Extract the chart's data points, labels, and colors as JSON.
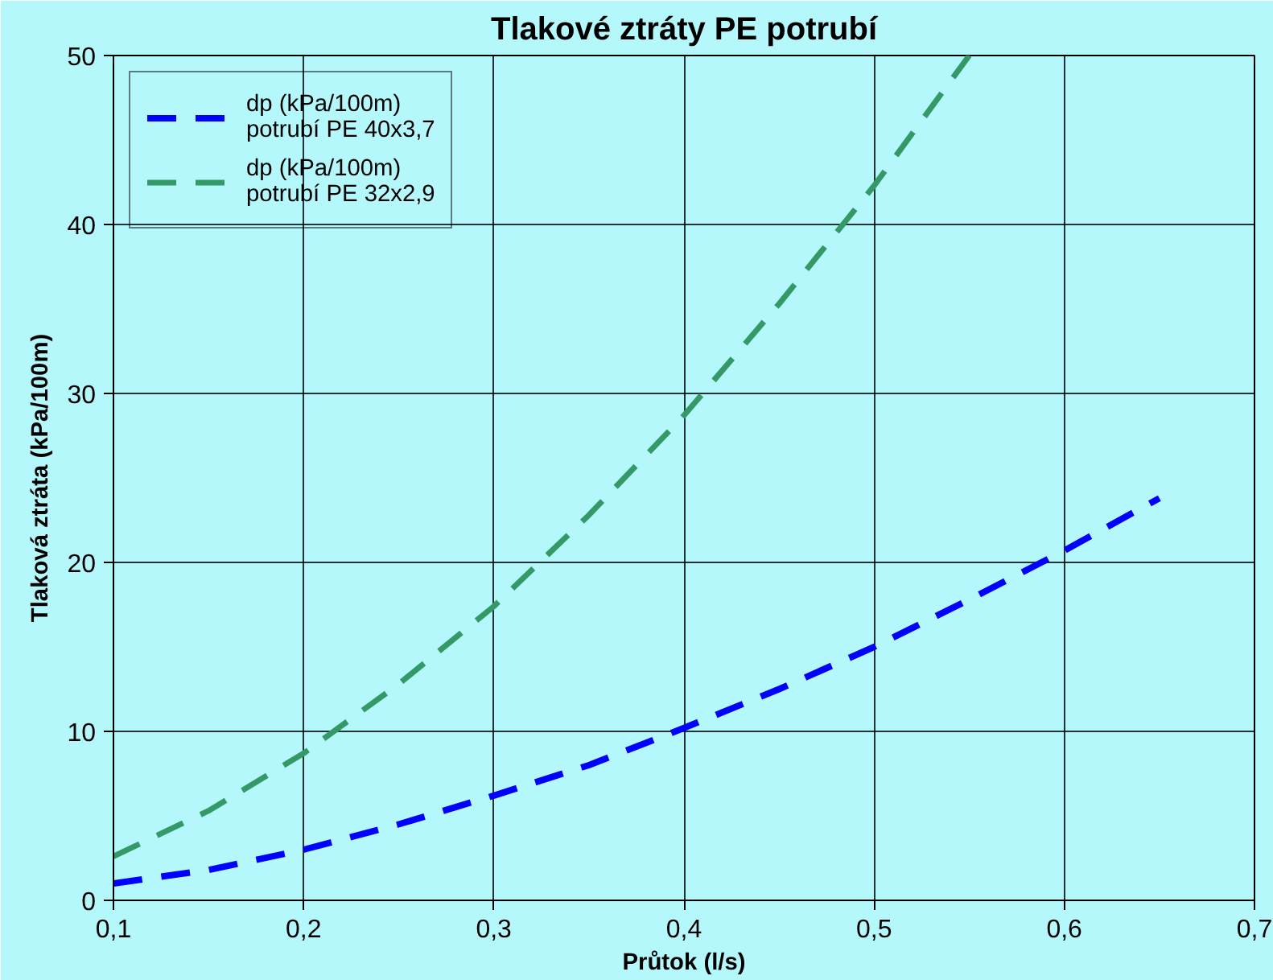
{
  "chart_data": {
    "type": "line",
    "title": "Tlakové ztráty PE potrubí",
    "xlabel": "Průtok (l/s)",
    "ylabel": "Tlaková ztráta (kPa/100m)",
    "x": [
      0.1,
      0.15,
      0.2,
      0.25,
      0.3,
      0.35,
      0.4,
      0.45,
      0.5,
      0.55,
      0.6,
      0.65
    ],
    "series": [
      {
        "name": "dp (kPa/100m)\npotrubí PE 40x3,7",
        "color": "#0000ff",
        "values": [
          1.0,
          1.8,
          3.0,
          4.5,
          6.2,
          8.0,
          10.2,
          12.5,
          15.0,
          17.8,
          20.7,
          23.8
        ]
      },
      {
        "name": "dp (kPa/100m)\npotrubí PE 32x2,9",
        "color": "#339966",
        "x": [
          0.1,
          0.15,
          0.2,
          0.25,
          0.3,
          0.35,
          0.4,
          0.45,
          0.5,
          0.55
        ],
        "values": [
          2.6,
          5.3,
          8.7,
          12.8,
          17.4,
          22.8,
          28.7,
          35.3,
          42.3,
          50.0
        ]
      }
    ],
    "xlim": [
      0.1,
      0.7
    ],
    "ylim": [
      0,
      50
    ],
    "xticks": [
      {
        "value": 0.1,
        "label": "0,1"
      },
      {
        "value": 0.2,
        "label": "0,2"
      },
      {
        "value": 0.3,
        "label": "0,3"
      },
      {
        "value": 0.4,
        "label": "0,4"
      },
      {
        "value": 0.5,
        "label": "0,5"
      },
      {
        "value": 0.6,
        "label": "0,6"
      },
      {
        "value": 0.7,
        "label": "0,7"
      }
    ],
    "yticks": [
      0,
      10,
      20,
      30,
      40,
      50
    ],
    "grid": true,
    "legend": "top left",
    "line_style": "dashed",
    "marker": "none"
  }
}
